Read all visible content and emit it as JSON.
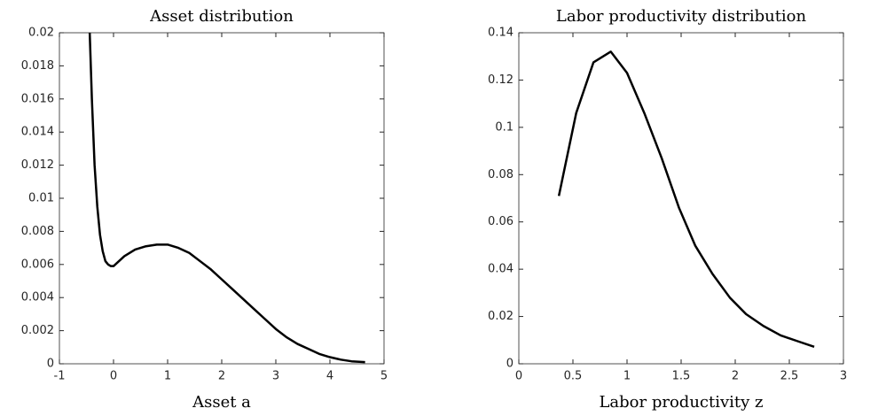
{
  "chart_data": [
    {
      "type": "line",
      "title": "Asset distribution",
      "xlabel": "Asset a",
      "x": [
        -0.44,
        -0.4,
        -0.35,
        -0.3,
        -0.25,
        -0.2,
        -0.15,
        -0.1,
        -0.05,
        0,
        0.1,
        0.2,
        0.4,
        0.6,
        0.8,
        1.0,
        1.2,
        1.4,
        1.6,
        1.8,
        2.0,
        2.2,
        2.4,
        2.6,
        2.8,
        3.0,
        3.2,
        3.4,
        3.6,
        3.8,
        4.0,
        4.2,
        4.4,
        4.65
      ],
      "values": [
        0.02,
        0.016,
        0.012,
        0.0095,
        0.0078,
        0.0068,
        0.0062,
        0.006,
        0.0059,
        0.0059,
        0.0062,
        0.0065,
        0.0069,
        0.0071,
        0.0072,
        0.0072,
        0.007,
        0.0067,
        0.0062,
        0.0057,
        0.0051,
        0.0045,
        0.0039,
        0.0033,
        0.0027,
        0.0021,
        0.0016,
        0.0012,
        0.0009,
        0.0006,
        0.0004,
        0.00025,
        0.00015,
        0.0001
      ],
      "color": "#000000",
      "xlim": [
        -1,
        5
      ],
      "xticks": [
        -1,
        0,
        1,
        2,
        3,
        4,
        5
      ],
      "ylim": [
        0,
        0.02
      ],
      "yticks": [
        0,
        0.002,
        0.004,
        0.006,
        0.008,
        0.01,
        0.012,
        0.014,
        0.016,
        0.018,
        0.02
      ]
    },
    {
      "type": "line",
      "title": "Labor productivity distribution",
      "xlabel": "Labor productivity z",
      "x": [
        0.37,
        0.53,
        0.69,
        0.85,
        1.0,
        1.16,
        1.32,
        1.48,
        1.63,
        1.79,
        1.95,
        2.1,
        2.26,
        2.42,
        2.58,
        2.73
      ],
      "values": [
        0.071,
        0.106,
        0.1275,
        0.132,
        0.123,
        0.106,
        0.087,
        0.066,
        0.05,
        0.038,
        0.028,
        0.021,
        0.016,
        0.012,
        0.0095,
        0.0072
      ],
      "color": "#000000",
      "xlim": [
        0,
        3
      ],
      "xticks": [
        0,
        0.5,
        1,
        1.5,
        2,
        2.5,
        3
      ],
      "ylim": [
        0,
        0.14
      ],
      "yticks": [
        0,
        0.02,
        0.04,
        0.06,
        0.08,
        0.1,
        0.12,
        0.14
      ]
    }
  ]
}
